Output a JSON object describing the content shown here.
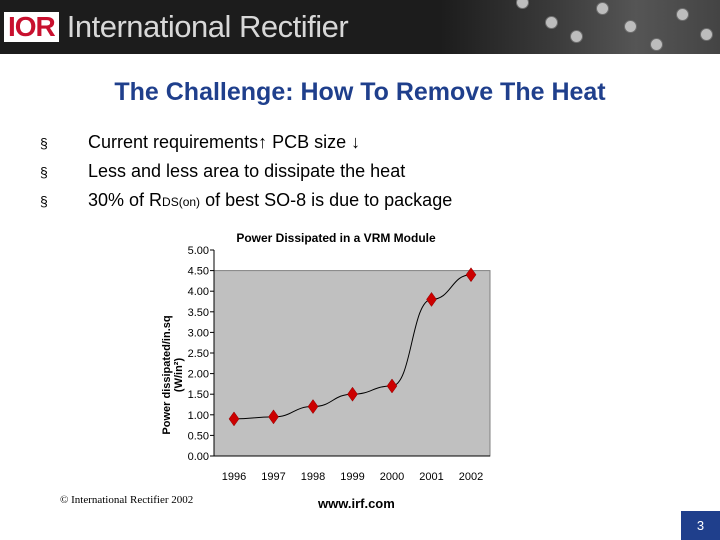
{
  "header": {
    "logo_mark": "IOR",
    "company": "International Rectifier"
  },
  "slide": {
    "title": "The Challenge: How To Remove The Heat",
    "bullets": [
      {
        "text_before": "Current requirements",
        "arrow1": "↑",
        "text_mid": " PCB size ",
        "arrow2": "↓"
      },
      {
        "text": "Less and less area to dissipate the heat"
      },
      {
        "text_a": "30% of R",
        "sub": "DS(on)",
        "text_b": " of best SO-8 is due to package"
      }
    ],
    "bullet_symbol": "§"
  },
  "footer": {
    "copyright": "© International Rectifier 2002",
    "url": "www.irf.com",
    "page": "3"
  },
  "chart_data": {
    "type": "line",
    "title": "Power Dissipated in a VRM Module",
    "ylabel_line1": "Power dissipated/in.sq",
    "ylabel_line2": "(W/in²)",
    "xlabel": "",
    "categories": [
      "1996",
      "1997",
      "1998",
      "1999",
      "2000",
      "2001",
      "2002"
    ],
    "yticks": [
      "0.00",
      "0.50",
      "1.00",
      "1.50",
      "2.00",
      "2.50",
      "3.00",
      "3.50",
      "4.00",
      "4.50",
      "5.00"
    ],
    "ylim": [
      0,
      5
    ],
    "grid": false,
    "series": [
      {
        "x": [
          1996,
          1997,
          1998,
          1999,
          2000,
          2001,
          2002
        ],
        "values": [
          0.9,
          0.95,
          1.2,
          1.5,
          1.7,
          3.8,
          4.4
        ],
        "color": "#cc0000"
      }
    ],
    "plot_background": "#c0c0c0"
  },
  "colors": {
    "title": "#1f3f8c",
    "accent": "#c8102e",
    "page_badge": "#1f3f8c"
  }
}
